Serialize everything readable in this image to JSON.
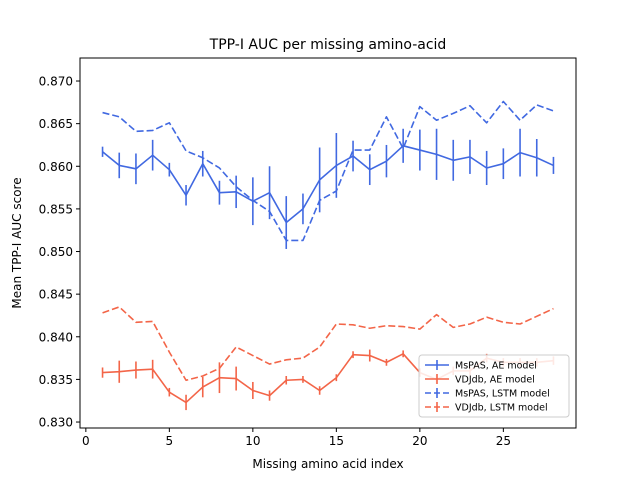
{
  "chart_data": {
    "type": "line",
    "title": "TPP-I AUC per missing amino-acid",
    "xlabel": "Missing amino acid index",
    "ylabel": "Mean TPP-I AUC score",
    "xlim": [
      -0.35,
      29.35
    ],
    "ylim": [
      0.8293,
      0.8727
    ],
    "xticks": [
      0,
      5,
      10,
      15,
      20,
      25
    ],
    "yticks": [
      0.83,
      0.835,
      0.84,
      0.845,
      0.85,
      0.855,
      0.86,
      0.865,
      0.87
    ],
    "x": [
      1,
      2,
      3,
      4,
      5,
      6,
      7,
      8,
      9,
      10,
      11,
      12,
      13,
      14,
      15,
      16,
      17,
      18,
      19,
      20,
      21,
      22,
      23,
      24,
      25,
      26,
      27,
      28
    ],
    "legend_position": "lower-right",
    "grid": false,
    "series": [
      {
        "name": "MsPAS, AE model",
        "color": "#4169e1",
        "dash": "solid",
        "values": [
          0.8617,
          0.8601,
          0.8597,
          0.8613,
          0.8596,
          0.8566,
          0.8603,
          0.8569,
          0.857,
          0.8559,
          0.8569,
          0.8534,
          0.855,
          0.8584,
          0.8601,
          0.8612,
          0.8596,
          0.8606,
          0.8624,
          0.8619,
          0.8614,
          0.8607,
          0.8611,
          0.8598,
          0.8603,
          0.8616,
          0.861,
          0.8601
        ],
        "errors": [
          0.0006,
          0.0015,
          0.0018,
          0.0018,
          0.0008,
          0.0012,
          0.0015,
          0.0014,
          0.0019,
          0.0028,
          0.0031,
          0.0031,
          0.0018,
          0.0038,
          0.0038,
          0.0018,
          0.0018,
          0.0019,
          0.002,
          0.0024,
          0.003,
          0.0024,
          0.002,
          0.002,
          0.0018,
          0.0028,
          0.0022,
          0.001
        ]
      },
      {
        "name": "VDJdb, AE model",
        "color": "#f36548",
        "dash": "solid",
        "values": [
          0.8358,
          0.8359,
          0.8361,
          0.8362,
          0.8335,
          0.8323,
          0.8341,
          0.8352,
          0.8351,
          0.8337,
          0.8331,
          0.8349,
          0.835,
          0.8337,
          0.8352,
          0.8379,
          0.8378,
          0.837,
          0.838,
          0.8358,
          0.835,
          0.836,
          0.836,
          0.8375,
          0.837,
          0.837,
          0.837,
          0.8372
        ],
        "errors": [
          0.0006,
          0.0013,
          0.001,
          0.0011,
          0.0005,
          0.0009,
          0.0012,
          0.0018,
          0.0014,
          0.001,
          0.0006,
          0.0005,
          0.0004,
          0.0005,
          0.0004,
          0.0004,
          0.0007,
          0.0004,
          0.0004,
          0.0005,
          0.0005,
          0.0005,
          0.0005,
          0.0005,
          0.0005,
          0.0005,
          0.0005,
          0.0005
        ]
      },
      {
        "name": "MsPAS, LSTM model",
        "color": "#4169e1",
        "dash": "dashed",
        "values": [
          0.8663,
          0.8658,
          0.8641,
          0.8642,
          0.8651,
          0.8618,
          0.861,
          0.8598,
          0.8576,
          0.856,
          0.8547,
          0.8513,
          0.8513,
          0.856,
          0.8571,
          0.8619,
          0.8619,
          0.8658,
          0.8621,
          0.867,
          0.8654,
          0.8662,
          0.8671,
          0.8651,
          0.8676,
          0.8654,
          0.8672,
          0.8665
        ]
      },
      {
        "name": "VDJdb, LSTM model",
        "color": "#f36548",
        "dash": "dashed",
        "values": [
          0.8428,
          0.8435,
          0.8417,
          0.8418,
          0.8382,
          0.8349,
          0.8354,
          0.8363,
          0.8388,
          0.8378,
          0.8368,
          0.8373,
          0.8375,
          0.8388,
          0.8415,
          0.8414,
          0.841,
          0.8413,
          0.8412,
          0.8409,
          0.8426,
          0.8411,
          0.8415,
          0.8423,
          0.8417,
          0.8415,
          0.8424,
          0.8433
        ]
      }
    ]
  }
}
